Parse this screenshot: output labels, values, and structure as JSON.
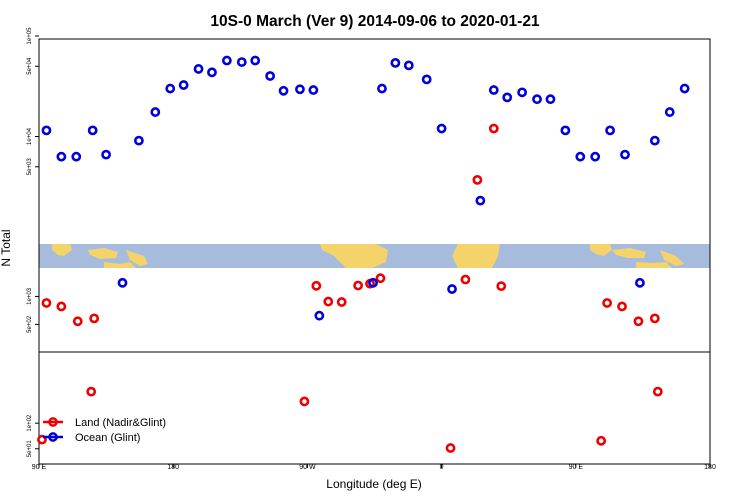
{
  "chart_data": {
    "type": "scatter",
    "title": "10S-0 March (Ver 9)   2014-09-06 to 2020-01-21",
    "xlabel": "Longitude (deg E)",
    "ylabel": "N Total",
    "x_ticks": [
      {
        "value": 90,
        "label": "90 E"
      },
      {
        "value": 180,
        "label": "180"
      },
      {
        "value": 270,
        "label": "90 W"
      },
      {
        "value": 360,
        "label": "0"
      },
      {
        "value": 450,
        "label": "90 E"
      },
      {
        "value": 540,
        "label": "180"
      }
    ],
    "xlim": [
      90,
      540
    ],
    "grid": false,
    "legend_position": "bottom-left",
    "colors": {
      "land": "#ee0000",
      "ocean": "#0000dd",
      "map_ocean": "#a7bcdc",
      "map_land": "#f5d36b"
    },
    "panels": [
      {
        "id": "upper",
        "scale": "log",
        "ylim": [
          1000,
          100000
        ],
        "y_ticks": [
          {
            "value": 5000,
            "label": "5e+03"
          },
          {
            "value": 10000,
            "label": "1e+04"
          },
          {
            "value": 50000,
            "label": "5e+04"
          },
          {
            "value": 100000,
            "label": "1e+05"
          }
        ]
      },
      {
        "id": "middle",
        "scale": "log",
        "ylim": [
          300,
          1700
        ],
        "y_ticks": [
          {
            "value": 500,
            "label": "5e+02"
          },
          {
            "value": 1000,
            "label": "1e+03"
          }
        ]
      },
      {
        "id": "lower",
        "scale": "log",
        "ylim": [
          40,
          600
        ],
        "y_ticks": [
          {
            "value": 50,
            "label": "5e+01"
          },
          {
            "value": 100,
            "label": "1e+02"
          }
        ]
      }
    ],
    "series": [
      {
        "name": "Land (Nadir&Glint)",
        "key": "land",
        "points": [
          [
            95,
            850,
            "middle"
          ],
          [
            105,
            780,
            "middle"
          ],
          [
            116,
            540,
            "middle"
          ],
          [
            127,
            580,
            "middle"
          ],
          [
            276,
            1300,
            "middle"
          ],
          [
            284,
            880,
            "middle"
          ],
          [
            293,
            870,
            "middle"
          ],
          [
            304,
            1310,
            "middle"
          ],
          [
            312,
            1370,
            "middle"
          ],
          [
            319,
            1570,
            "middle"
          ],
          [
            376,
            1520,
            "middle"
          ],
          [
            384,
            3700,
            "upper"
          ],
          [
            395,
            12000,
            "upper"
          ],
          [
            400,
            1290,
            "middle"
          ],
          [
            471,
            850,
            "middle"
          ],
          [
            481,
            780,
            "middle"
          ],
          [
            492,
            540,
            "middle"
          ],
          [
            503,
            580,
            "middle"
          ],
          [
            92,
            64,
            "lower"
          ],
          [
            125,
            235,
            "lower"
          ],
          [
            268,
            180,
            "lower"
          ],
          [
            366,
            51,
            "lower"
          ],
          [
            467,
            62,
            "lower"
          ],
          [
            505,
            235,
            "lower"
          ]
        ]
      },
      {
        "name": "Ocean (Glint)",
        "key": "ocean",
        "points": [
          [
            95,
            11500,
            "upper"
          ],
          [
            105,
            6300,
            "upper"
          ],
          [
            115,
            6300,
            "upper"
          ],
          [
            126,
            11500,
            "upper"
          ],
          [
            135,
            6600,
            "upper"
          ],
          [
            146,
            1400,
            "middle"
          ],
          [
            157,
            9100,
            "upper"
          ],
          [
            168,
            17500,
            "upper"
          ],
          [
            178,
            30000,
            "upper"
          ],
          [
            187,
            32500,
            "upper"
          ],
          [
            197,
            47000,
            "upper"
          ],
          [
            206,
            43500,
            "upper"
          ],
          [
            216,
            57000,
            "upper"
          ],
          [
            226,
            55000,
            "upper"
          ],
          [
            235,
            57000,
            "upper"
          ],
          [
            245,
            40000,
            "upper"
          ],
          [
            254,
            28500,
            "upper"
          ],
          [
            265,
            29500,
            "upper"
          ],
          [
            274,
            29000,
            "upper"
          ],
          [
            278,
            620,
            "middle"
          ],
          [
            314,
            1400,
            "middle"
          ],
          [
            320,
            30000,
            "upper"
          ],
          [
            329,
            54000,
            "upper"
          ],
          [
            338,
            51000,
            "upper"
          ],
          [
            350,
            37000,
            "upper"
          ],
          [
            360,
            12000,
            "upper"
          ],
          [
            367,
            1200,
            "middle"
          ],
          [
            386,
            2300,
            "upper"
          ],
          [
            395,
            29000,
            "upper"
          ],
          [
            404,
            24500,
            "upper"
          ],
          [
            414,
            27500,
            "upper"
          ],
          [
            424,
            23500,
            "upper"
          ],
          [
            433,
            23500,
            "upper"
          ],
          [
            443,
            11500,
            "upper"
          ],
          [
            453,
            6300,
            "upper"
          ],
          [
            463,
            6300,
            "upper"
          ],
          [
            473,
            11500,
            "upper"
          ],
          [
            483,
            6600,
            "upper"
          ],
          [
            493,
            1400,
            "middle"
          ],
          [
            503,
            9100,
            "upper"
          ],
          [
            513,
            17500,
            "upper"
          ],
          [
            523,
            30000,
            "upper"
          ]
        ]
      }
    ]
  }
}
